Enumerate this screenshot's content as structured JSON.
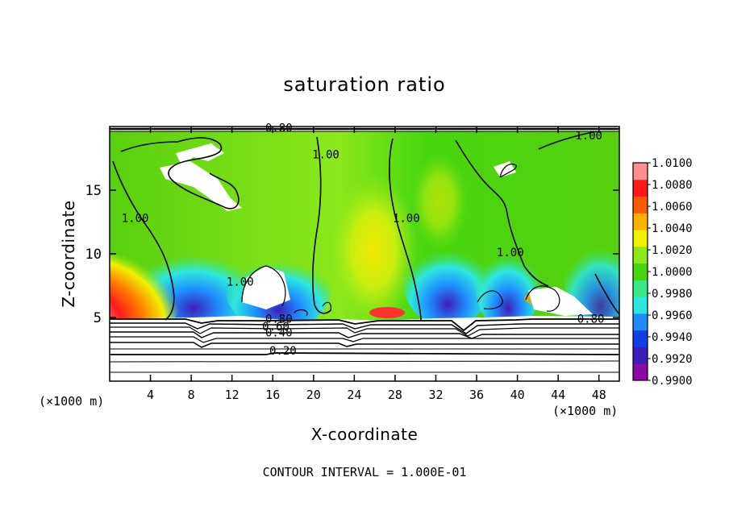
{
  "chart_data": {
    "type": "heatmap",
    "title": "saturation ratio",
    "xlabel": "X-coordinate",
    "ylabel": "Z-coordinate",
    "x_units_left": "(×1000 m)",
    "x_units_right": "(×1000 m)",
    "xlim": [
      0,
      50
    ],
    "ylim": [
      0,
      20
    ],
    "x_ticks": [
      4,
      8,
      12,
      16,
      20,
      24,
      28,
      32,
      36,
      40,
      44,
      48
    ],
    "y_ticks": [
      5,
      10,
      15
    ],
    "footer": "CONTOUR INTERVAL = 1.000E-01",
    "colorbar": {
      "range": [
        0.99,
        1.01
      ],
      "labels": [
        "1.0100",
        "1.0080",
        "1.0060",
        "1.0040",
        "1.0020",
        "1.0000",
        "0.9980",
        "0.9960",
        "0.9940",
        "0.9920",
        "0.9900"
      ],
      "colors": [
        "#8b0aa5",
        "#3c1fb8",
        "#1340e6",
        "#1e8cff",
        "#2ee6e0",
        "#36e886",
        "#46d60e",
        "#8ce81c",
        "#f0f000",
        "#ffb000",
        "#ff5a00",
        "#ff1a1a",
        "#ff8f8f"
      ]
    },
    "contour_labels": [
      {
        "text": "0.80",
        "x": 16.6,
        "y": 19.6
      },
      {
        "text": "1.00",
        "x": 2.5,
        "y": 12.5
      },
      {
        "text": "1.00",
        "x": 21.2,
        "y": 17.5
      },
      {
        "text": "1.00",
        "x": 29.1,
        "y": 12.5
      },
      {
        "text": "1.00",
        "x": 47.0,
        "y": 19.0
      },
      {
        "text": "1.00",
        "x": 39.3,
        "y": 9.8
      },
      {
        "text": "0.80",
        "x": 16.6,
        "y": 4.6
      },
      {
        "text": "0.60",
        "x": 16.3,
        "y": 4.0
      },
      {
        "text": "0.40",
        "x": 16.6,
        "y": 3.5
      },
      {
        "text": "0.20",
        "x": 17.0,
        "y": 2.1
      },
      {
        "text": "0.80",
        "x": 47.2,
        "y": 4.6
      },
      {
        "text": "1.00",
        "x": 12.8,
        "y": 7.5
      }
    ]
  }
}
